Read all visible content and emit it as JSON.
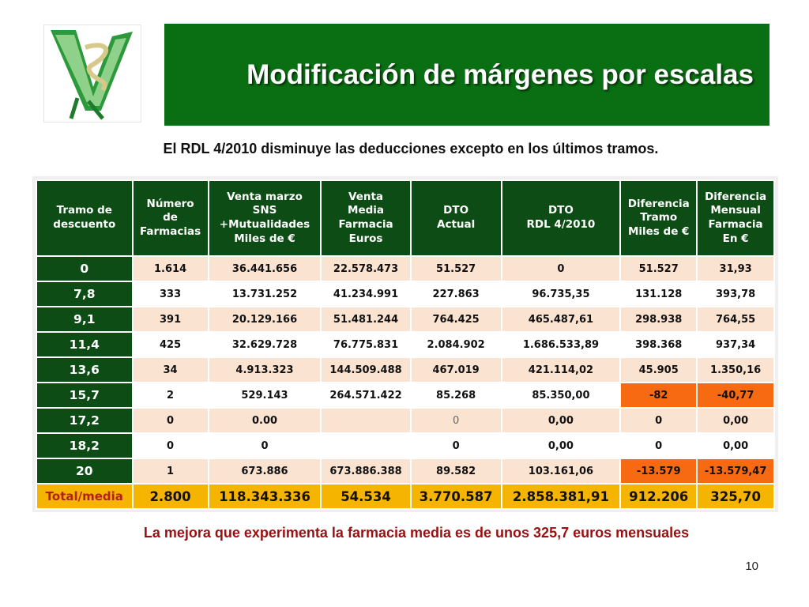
{
  "slide": {
    "title": "Modificación de márgenes por escalas",
    "subtitle": "El RDL 4/2010 disminuye las deducciones excepto en los últimos tramos.",
    "conclusion": "La mejora que experimenta la farmacia media es de unos 325,7 euros mensuales",
    "page_number": "10"
  },
  "colors": {
    "title_bg": "#0a6e12",
    "header_bg": "#0d4d15",
    "row_alt": "#fbe3d2",
    "negative": "#f86a12",
    "total_bg": "#f4b400",
    "conclusion_text": "#9a1010"
  },
  "table": {
    "headers": [
      "Tramo de\ndescuento",
      "Número\nde\nFarmacias",
      "Venta marzo\nSNS\n+Mutualidades\nMiles de €",
      "Venta\nMedia\nFarmacia\nEuros",
      "DTO\nActual",
      "DTO\nRDL 4/2010",
      "Diferencia\nTramo\nMiles de €",
      "Diferencia\nMensual\nFarmacia\nEn €"
    ],
    "rows": [
      [
        "0",
        "1.614",
        "36.441.656",
        "22.578.473",
        "51.527",
        "0",
        "51.527",
        "31,93"
      ],
      [
        "7,8",
        "333",
        "13.731.252",
        "41.234.991",
        "227.863",
        "96.735,35",
        "131.128",
        "393,78"
      ],
      [
        "9,1",
        "391",
        "20.129.166",
        "51.481.244",
        "764.425",
        "465.487,61",
        "298.938",
        "764,55"
      ],
      [
        "11,4",
        "425",
        "32.629.728",
        "76.775.831",
        "2.084.902",
        "1.686.533,89",
        "398.368",
        "937,34"
      ],
      [
        "13,6",
        "34",
        "4.913.323",
        "144.509.488",
        "467.019",
        "421.114,02",
        "45.905",
        "1.350,16"
      ],
      [
        "15,7",
        "2",
        "529.143",
        "264.571.422",
        "85.268",
        "85.350,00",
        "-82",
        "-40,77"
      ],
      [
        "17,2",
        "0",
        "0.00",
        "",
        "0",
        "0,00",
        "0",
        "0,00"
      ],
      [
        "18,2",
        "0",
        "0",
        "",
        "0",
        "0,00",
        "0",
        "0,00"
      ],
      [
        "20",
        "1",
        "673.886",
        "673.886.388",
        "89.582",
        "103.161,06",
        "-13.579",
        "-13.579,47"
      ]
    ],
    "total": [
      "Total/media",
      "2.800",
      "118.343.336",
      "54.534",
      "3.770.587",
      "2.858.381,91",
      "912.206",
      "325,70"
    ]
  }
}
